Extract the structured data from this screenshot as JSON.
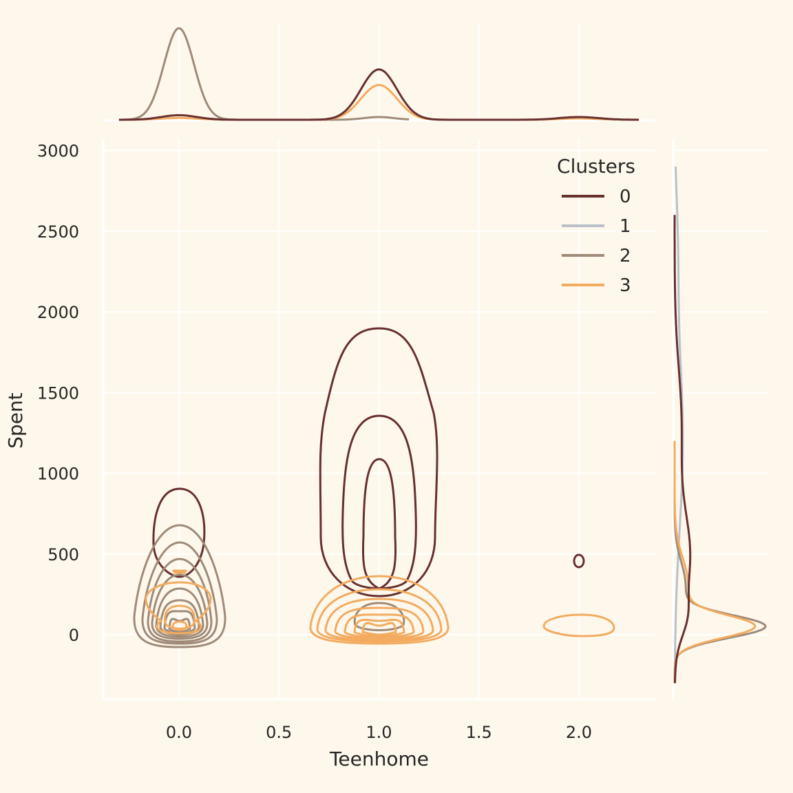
{
  "chart_data": {
    "type": "kde-joint",
    "xlabel": "Teenhome",
    "ylabel": "Spent",
    "xlim": [
      -0.38,
      2.38
    ],
    "ylim": [
      -400,
      3080
    ],
    "xticks": [
      "0.0",
      "0.5",
      "1.0",
      "1.5",
      "2.0"
    ],
    "xtick_values": [
      0.0,
      0.5,
      1.0,
      1.5,
      2.0
    ],
    "yticks": [
      "0",
      "500",
      "1000",
      "1500",
      "2000",
      "2500",
      "3000"
    ],
    "ytick_values": [
      0,
      500,
      1000,
      1500,
      2000,
      2500,
      3000
    ],
    "grid": true,
    "background": "#FEF8EC",
    "legend": {
      "title": "Clusters",
      "placement": "top-right",
      "entries": [
        "0",
        "1",
        "2",
        "3"
      ]
    },
    "series": [
      {
        "name": "0",
        "color": "#682F2F",
        "x_mode_values": [
          0,
          1,
          2
        ],
        "x_mode_relative_density": [
          0.05,
          0.55,
          0.03
        ],
        "spent_peak": 450
      },
      {
        "name": "1",
        "color": "#B9C0C9",
        "x_mode_values": [],
        "x_mode_relative_density": [],
        "spent_peak": 1200
      },
      {
        "name": "2",
        "color": "#9F8A78",
        "x_mode_values": [
          0,
          1
        ],
        "x_mode_relative_density": [
          1.0,
          0.03
        ],
        "spent_peak": 50
      },
      {
        "name": "3",
        "color": "#F3AB60",
        "x_mode_values": [
          0,
          1,
          2
        ],
        "x_mode_relative_density": [
          0.02,
          0.38,
          0.015
        ],
        "spent_peak": 50
      }
    ]
  }
}
